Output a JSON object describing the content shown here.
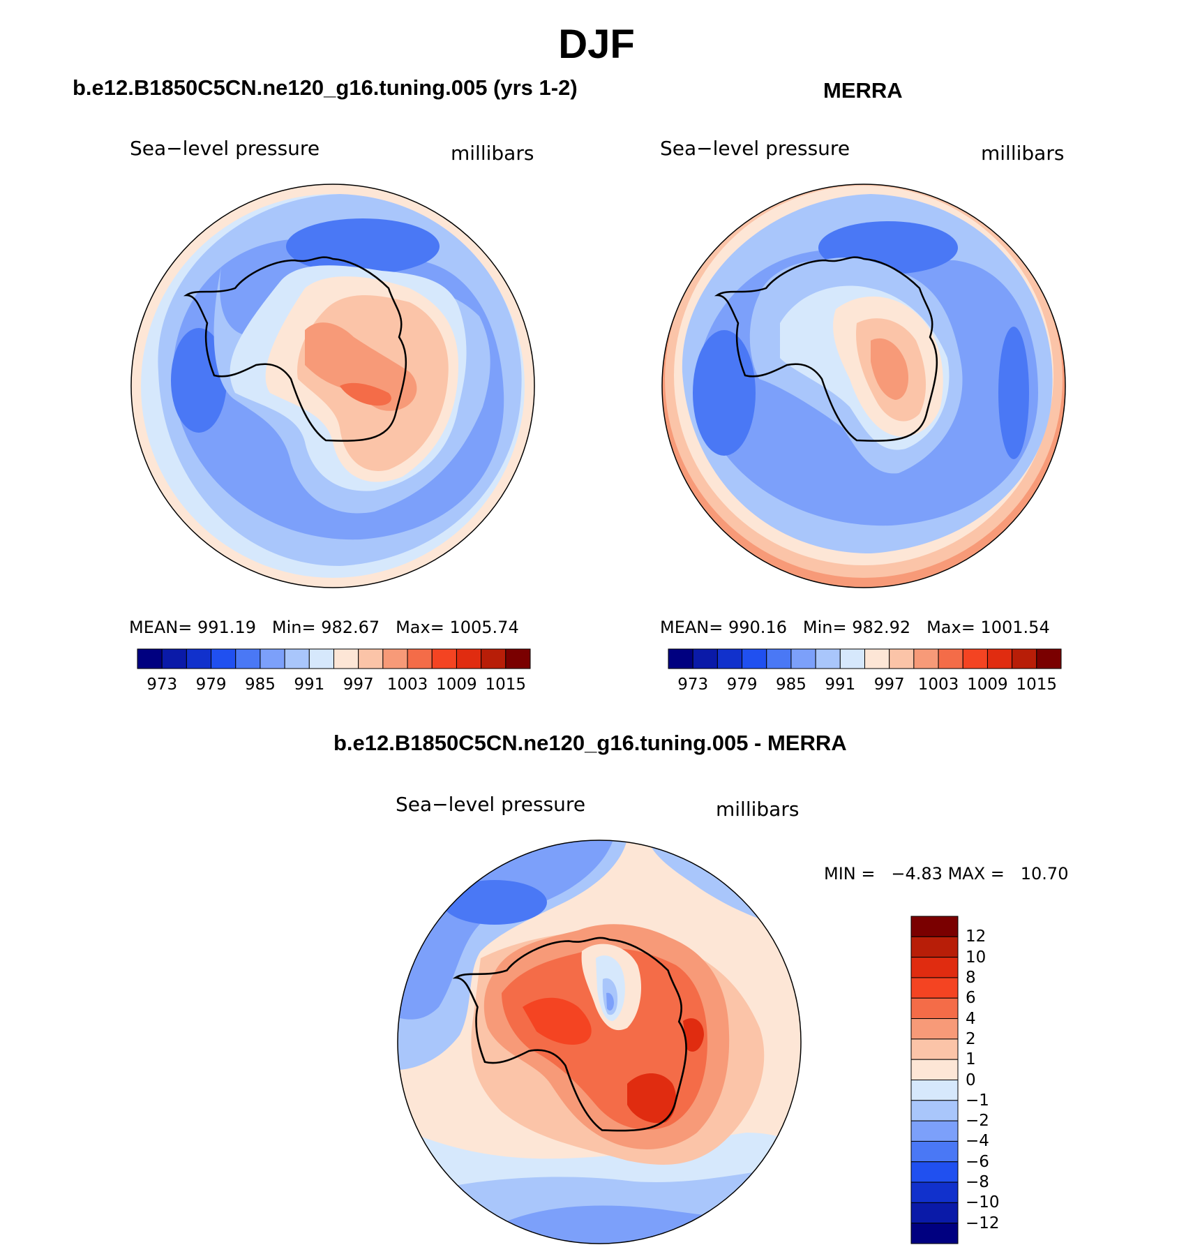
{
  "title": "DJF",
  "panels": {
    "model": {
      "title": "b.e12.B1850C5CN.ne120_g16.tuning.005 (yrs 1-2)",
      "variable": "Sea−level pressure",
      "units": "millibars",
      "stats": {
        "mean_label": "MEAN=",
        "mean": "991.19",
        "min_label": "Min=",
        "min": "982.67",
        "max_label": "Max=",
        "max": "1005.74"
      }
    },
    "obs": {
      "title": "MERRA",
      "variable": "Sea−level pressure",
      "units": "millibars",
      "stats": {
        "mean_label": "MEAN=",
        "mean": "990.16",
        "min_label": "Min=",
        "min": "982.92",
        "max_label": "Max=",
        "max": "1001.54"
      }
    },
    "diff": {
      "title": "b.e12.B1850C5CN.ne120_g16.tuning.005 - MERRA",
      "variable": "Sea−level pressure",
      "units": "millibars",
      "stats": {
        "min_label": "MIN =",
        "min": "−4.83",
        "max_label": "MAX =",
        "max": "10.70"
      }
    }
  },
  "colorbar_abs": {
    "labels": [
      "973",
      "979",
      "985",
      "991",
      "997",
      "1003",
      "1009",
      "1015"
    ],
    "colors": [
      "#000080",
      "#0a1aa8",
      "#1131cc",
      "#2050f0",
      "#4a78f5",
      "#7ca0fa",
      "#a9c6fb",
      "#d6e8fc",
      "#fde6d6",
      "#fbc4a8",
      "#f79a78",
      "#f46c48",
      "#f44422",
      "#e02c10",
      "#b81e08",
      "#7a0000"
    ]
  },
  "colorbar_diff": {
    "labels": [
      "12",
      "10",
      "8",
      "6",
      "4",
      "2",
      "1",
      "0",
      "−1",
      "−2",
      "−4",
      "−6",
      "−8",
      "−10",
      "−12"
    ],
    "colors": [
      "#7a0000",
      "#b81e08",
      "#e02c10",
      "#f44422",
      "#f46c48",
      "#f79a78",
      "#fbc4a8",
      "#fde6d6",
      "#d6e8fc",
      "#a9c6fb",
      "#7ca0fa",
      "#4a78f5",
      "#2050f0",
      "#1131cc",
      "#0a1aa8",
      "#000080"
    ]
  }
}
